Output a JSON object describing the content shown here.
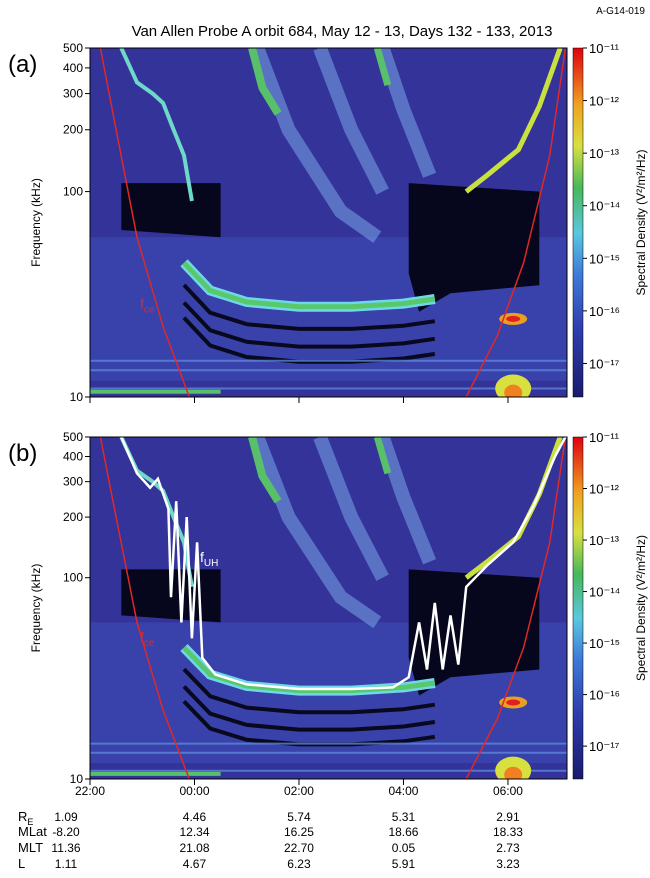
{
  "header": {
    "code": "A-G14-019",
    "title": "Van Allen Probe A orbit 684, May 12 - 13, Days 132 - 133, 2013"
  },
  "chart_data": [
    {
      "type": "spectrogram",
      "panel_label": "(a)",
      "ylabel": "Frequency (kHz)",
      "log_y": true,
      "ylim": [
        10,
        500
      ],
      "yticks": [
        10,
        100,
        200,
        300,
        400,
        500
      ],
      "xlim": [
        22,
        31.13
      ],
      "xticks": [
        22,
        24,
        26,
        28,
        30
      ],
      "colorbar": {
        "label": "Spectral Density (V²/m²/Hz)",
        "lim": [
          2.3e-18,
          1e-11
        ],
        "ticks": [
          {
            "value": 1e-11,
            "label": "10⁻¹¹"
          },
          {
            "value": 1e-12,
            "label": "10⁻¹²"
          },
          {
            "value": 1e-13,
            "label": "10⁻¹³"
          },
          {
            "value": 1e-14,
            "label": "10⁻¹⁴"
          },
          {
            "value": 1e-15,
            "label": "10⁻¹⁵"
          },
          {
            "value": 1e-16,
            "label": "10⁻¹⁶"
          },
          {
            "value": 1e-17,
            "label": "10⁻¹⁷"
          }
        ]
      },
      "annotations": [
        {
          "text": "f",
          "subscript": "ce"
        }
      ]
    },
    {
      "type": "spectrogram",
      "panel_label": "(b)",
      "ylabel": "Frequency (kHz)",
      "log_y": true,
      "ylim": [
        10,
        500
      ],
      "yticks": [
        10,
        100,
        200,
        300,
        400,
        500
      ],
      "xlim": [
        22,
        31.13
      ],
      "xticks": [
        {
          "value": 22,
          "label": "22:00"
        },
        {
          "value": 24,
          "label": "00:00"
        },
        {
          "value": 26,
          "label": "02:00"
        },
        {
          "value": 28,
          "label": "04:00"
        },
        {
          "value": 30,
          "label": "06:00"
        }
      ],
      "colorbar": {
        "label": "Spectral Density (V²/m²/Hz)",
        "lim": [
          2.3e-18,
          1e-11
        ],
        "ticks": [
          {
            "value": 1e-11,
            "label": "10⁻¹¹"
          },
          {
            "value": 1e-12,
            "label": "10⁻¹²"
          },
          {
            "value": 1e-13,
            "label": "10⁻¹³"
          },
          {
            "value": 1e-14,
            "label": "10⁻¹⁴"
          },
          {
            "value": 1e-15,
            "label": "10⁻¹⁵"
          },
          {
            "value": 1e-16,
            "label": "10⁻¹⁶"
          },
          {
            "value": 1e-17,
            "label": "10⁻¹⁷"
          }
        ]
      },
      "annotations": [
        {
          "text": "f",
          "subscript": "ce"
        },
        {
          "text": "f",
          "subscript": "UH"
        }
      ]
    }
  ],
  "ephemeris": {
    "rows": [
      {
        "label": "R",
        "subscript": "E",
        "values": [
          "1.09",
          "4.46",
          "5.74",
          "5.31",
          "2.91"
        ]
      },
      {
        "label": "MLat",
        "values": [
          "-8.20",
          "12.34",
          "16.25",
          "18.66",
          "18.33"
        ]
      },
      {
        "label": "MLT",
        "values": [
          "11.36",
          "21.08",
          "22.70",
          "0.05",
          "2.73"
        ]
      },
      {
        "label": "L",
        "values": [
          "1.11",
          "4.67",
          "6.23",
          "5.91",
          "3.23"
        ]
      }
    ]
  }
}
